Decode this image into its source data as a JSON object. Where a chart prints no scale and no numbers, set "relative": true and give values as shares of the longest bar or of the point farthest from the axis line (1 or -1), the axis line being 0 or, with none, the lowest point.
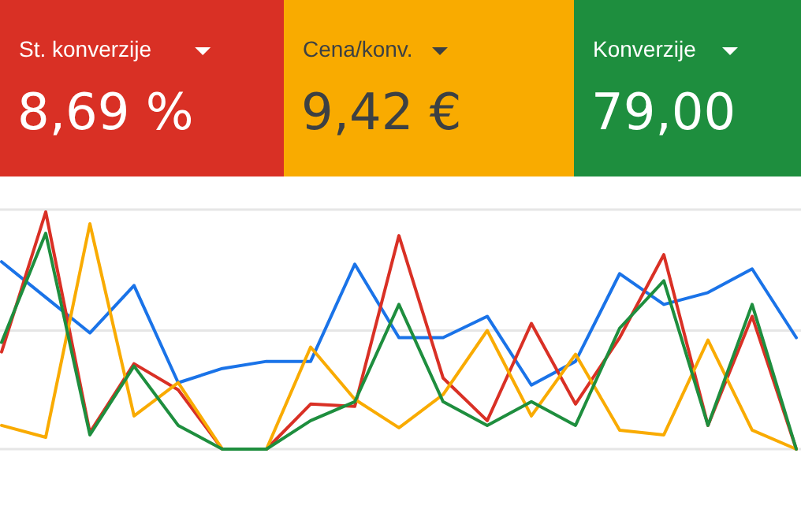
{
  "chart_data": [
    {
      "type": "other",
      "categories": [
        "St. konverzije",
        "Cena/konv.",
        "Konverzije"
      ],
      "value_labels": [
        "8,69 %",
        "9,42 €",
        "79,00"
      ],
      "colors": [
        "#d93025",
        "#f9ab00",
        "#1e8e3e"
      ]
    },
    {
      "type": "line",
      "relative": true,
      "grid": "y",
      "ref_lines": [
        {
          "axis": "y",
          "value": 0.5,
          "color": "#e6e6e6"
        }
      ],
      "categories": [
        null,
        null,
        null,
        null,
        null,
        null,
        null,
        null,
        null,
        null,
        null,
        null,
        null,
        null,
        null,
        null,
        null,
        null,
        null
      ],
      "series": [
        {
          "color": "#1a73e8",
          "values": [
            0.79,
            0.64,
            0.49,
            0.69,
            0.28,
            0.34,
            0.37,
            0.37,
            0.78,
            0.47,
            0.47,
            0.56,
            0.27,
            0.37,
            0.74,
            0.61,
            0.66,
            0.76,
            0.47
          ]
        },
        {
          "color": "#d93025",
          "values": [
            0.41,
            1,
            0.07,
            0.36,
            0.25,
            0,
            0,
            0.19,
            0.18,
            0.9,
            0.3,
            0.12,
            0.53,
            0.19,
            0.47,
            0.82,
            0.1,
            0.56,
            0
          ]
        },
        {
          "color": "#f9ab00",
          "values": [
            0.1,
            0.05,
            0.95,
            0.14,
            0.28,
            0,
            0,
            0.43,
            0.21,
            0.09,
            0.23,
            0.5,
            0.14,
            0.4,
            0.08,
            0.06,
            0.46,
            0.08,
            0
          ]
        },
        {
          "color": "#1e8e3e",
          "values": [
            0.45,
            0.91,
            0.06,
            0.35,
            0.1,
            0,
            0,
            0.12,
            0.2,
            0.61,
            0.2,
            0.1,
            0.2,
            0.1,
            0.51,
            0.71,
            0.1,
            0.61,
            0
          ]
        }
      ]
    }
  ]
}
